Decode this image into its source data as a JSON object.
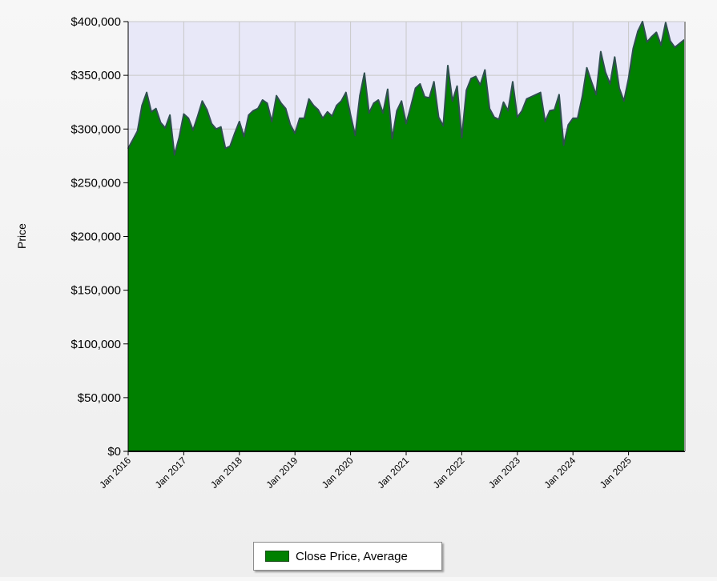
{
  "chart_data": {
    "type": "area",
    "ylabel": "Price",
    "xlabel": "",
    "ylim": [
      0,
      400000
    ],
    "y_ticks": [
      "$0",
      "$50,000",
      "$100,000",
      "$150,000",
      "$200,000",
      "$250,000",
      "$300,000",
      "$350,000",
      "$400,000"
    ],
    "x_ticks": [
      "Jan 2016",
      "Jan 2017",
      "Jan 2018",
      "Jan 2019",
      "Jan 2020",
      "Jan 2021",
      "Jan 2022",
      "Jan 2023",
      "Jan 2024",
      "Jan 2025"
    ],
    "grid": true,
    "legend_position": "bottom-center",
    "colors": {
      "fill": "#008000",
      "line": "#2f4f4f",
      "plot_background": "#e8e8f8",
      "grid": "#c8c8c8"
    },
    "series": [
      {
        "name": "Close Price, Average",
        "x": [
          "2016-01",
          "2016-02",
          "2016-03",
          "2016-04",
          "2016-05",
          "2016-06",
          "2016-07",
          "2016-08",
          "2016-09",
          "2016-10",
          "2016-11",
          "2016-12",
          "2017-01",
          "2017-02",
          "2017-03",
          "2017-04",
          "2017-05",
          "2017-06",
          "2017-07",
          "2017-08",
          "2017-09",
          "2017-10",
          "2017-11",
          "2017-12",
          "2018-01",
          "2018-02",
          "2018-03",
          "2018-04",
          "2018-05",
          "2018-06",
          "2018-07",
          "2018-08",
          "2018-09",
          "2018-10",
          "2018-11",
          "2018-12",
          "2019-01",
          "2019-02",
          "2019-03",
          "2019-04",
          "2019-05",
          "2019-06",
          "2019-07",
          "2019-08",
          "2019-09",
          "2019-10",
          "2019-11",
          "2019-12",
          "2020-01",
          "2020-02",
          "2020-03",
          "2020-04",
          "2020-05",
          "2020-06",
          "2020-07",
          "2020-08",
          "2020-09",
          "2020-10",
          "2020-11",
          "2020-12",
          "2021-01",
          "2021-02",
          "2021-03",
          "2021-04",
          "2021-05",
          "2021-06",
          "2021-07",
          "2021-08",
          "2021-09",
          "2021-10",
          "2021-11",
          "2021-12",
          "2022-01",
          "2022-02",
          "2022-03",
          "2022-04",
          "2022-05",
          "2022-06",
          "2022-07",
          "2022-08",
          "2022-09",
          "2022-10",
          "2022-11",
          "2022-12",
          "2023-01",
          "2023-02",
          "2023-03",
          "2023-04",
          "2023-05",
          "2023-06",
          "2023-07",
          "2023-08",
          "2023-09",
          "2023-10",
          "2023-11",
          "2023-12",
          "2024-01",
          "2024-02",
          "2024-03",
          "2024-04",
          "2024-05",
          "2024-06",
          "2024-07",
          "2024-08",
          "2024-09",
          "2024-10",
          "2024-11",
          "2024-12",
          "2025-01",
          "2025-02",
          "2025-03",
          "2025-04",
          "2025-05",
          "2025-06",
          "2025-07",
          "2025-08",
          "2025-09",
          "2025-10",
          "2025-11",
          "2025-12"
        ],
        "values": [
          282000,
          290000,
          298000,
          322000,
          334000,
          316000,
          319000,
          306000,
          301000,
          313000,
          276000,
          292000,
          314000,
          310000,
          299000,
          312000,
          326000,
          318000,
          305000,
          300000,
          302000,
          282000,
          284000,
          296000,
          307000,
          293000,
          313000,
          317000,
          319000,
          327000,
          324000,
          307000,
          331000,
          324000,
          319000,
          304000,
          296000,
          310000,
          310000,
          328000,
          322000,
          318000,
          310000,
          316000,
          312000,
          322000,
          326000,
          334000,
          313000,
          294000,
          331000,
          352000,
          315000,
          324000,
          327000,
          315000,
          337000,
          291000,
          317000,
          326000,
          305000,
          321000,
          338000,
          342000,
          330000,
          329000,
          344000,
          311000,
          303000,
          359000,
          326000,
          340000,
          292000,
          336000,
          347000,
          349000,
          341000,
          355000,
          319000,
          311000,
          309000,
          325000,
          317000,
          344000,
          311000,
          317000,
          328000,
          330000,
          332000,
          334000,
          307000,
          317000,
          318000,
          332000,
          285000,
          304000,
          310000,
          310000,
          330000,
          357000,
          344000,
          332000,
          372000,
          353000,
          342000,
          367000,
          338000,
          326000,
          347000,
          375000,
          391000,
          400000,
          381000,
          386000,
          390000,
          378000,
          399000,
          382000,
          376000,
          383000
        ]
      }
    ]
  }
}
